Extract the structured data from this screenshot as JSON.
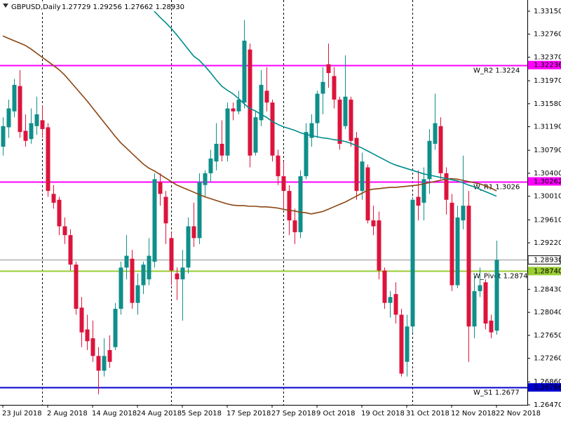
{
  "chart_data": {
    "type": "candlestick",
    "title": "GBPUSD,Daily",
    "ohlc_text": "1.27729 1.29256 1.27662 1.28930",
    "up_color": "#0f8f8a",
    "down_color": "#dc143c",
    "categories": [
      "23 Jul 2018",
      null,
      null,
      null,
      null,
      null,
      null,
      null,
      "2 Aug 2018",
      null,
      null,
      null,
      null,
      null,
      null,
      null,
      "14 Aug 2018",
      null,
      null,
      null,
      null,
      null,
      null,
      null,
      "24 Aug 2018",
      null,
      null,
      null,
      null,
      null,
      null,
      null,
      "5 Sep 2018",
      null,
      null,
      null,
      null,
      null,
      null,
      null,
      "17 Sep 2018",
      null,
      null,
      null,
      null,
      null,
      null,
      null,
      "27 Sep 2018",
      null,
      null,
      null,
      null,
      null,
      null,
      null,
      "9 Oct 2018",
      null,
      null,
      null,
      null,
      null,
      null,
      null,
      "19 Oct 2018",
      null,
      null,
      null,
      null,
      null,
      null,
      null,
      "31 Oct 2018",
      null,
      null,
      null,
      null,
      null,
      null,
      null,
      "12 Nov 2018",
      null,
      null,
      null,
      null,
      null,
      null,
      null,
      "22 Nov 2018"
    ],
    "open": [
      1.3085,
      1.3118,
      1.3145,
      1.3188,
      1.3112,
      1.3098,
      1.312,
      1.313,
      1.3118,
      1.3005,
      1.2995,
      1.295,
      1.2935,
      1.2885,
      1.2812,
      1.2775,
      1.276,
      1.273,
      1.2705,
      1.274,
      1.2745,
      1.281,
      1.288,
      1.2895,
      1.282,
      1.285,
      1.286,
      1.289,
      1.3025,
      1.3,
      1.293,
      1.287,
      1.286,
      1.288,
      1.295,
      1.293,
      1.302,
      1.304,
      1.306,
      1.309,
      1.307,
      1.315,
      1.3145,
      1.316,
      1.325,
      1.3075,
      1.313,
      1.318,
      1.316,
      1.307,
      1.3035,
      1.301,
      1.296,
      1.294,
      1.3035,
      1.31,
      1.3125,
      1.3175,
      1.3225,
      1.3205,
      1.3165,
      1.312,
      1.3165,
      1.31,
      1.301,
      1.305,
      1.296,
      1.296,
      1.2875,
      1.282,
      1.2835,
      1.28,
      1.272,
      1.278,
      1.3,
      1.299,
      1.303,
      1.309,
      1.312,
      1.304,
      1.299,
      1.285,
      1.296,
      1.2985,
      1.278,
      1.284,
      1.2855,
      1.279,
      1.27729
    ],
    "high": [
      1.3135,
      1.3165,
      1.32,
      1.3215,
      1.314,
      1.315,
      1.317,
      1.3155,
      1.3125,
      1.302,
      1.3,
      1.2965,
      1.2945,
      1.289,
      1.283,
      1.28,
      1.279,
      1.2745,
      1.276,
      1.2765,
      1.282,
      1.289,
      1.2935,
      1.291,
      1.287,
      1.289,
      1.293,
      1.304,
      1.304,
      1.301,
      1.294,
      1.288,
      1.291,
      1.2965,
      1.299,
      1.304,
      1.3045,
      1.308,
      1.3125,
      1.313,
      1.316,
      1.316,
      1.318,
      1.33,
      1.326,
      1.3145,
      1.3215,
      1.322,
      1.3165,
      1.308,
      1.306,
      1.302,
      1.298,
      1.3045,
      1.3125,
      1.314,
      1.318,
      1.322,
      1.326,
      1.322,
      1.317,
      1.324,
      1.317,
      1.311,
      1.3075,
      1.3055,
      1.2985,
      1.2975,
      1.288,
      1.284,
      1.2855,
      1.281,
      1.28,
      1.3,
      1.3045,
      1.305,
      1.3115,
      1.3175,
      1.3135,
      1.305,
      1.3005,
      1.2985,
      1.307,
      1.301,
      1.287,
      1.288,
      1.286,
      1.28,
      1.29256
    ],
    "low": [
      1.307,
      1.31,
      1.3135,
      1.31,
      1.3085,
      1.309,
      1.3105,
      1.31,
      1.3,
      1.298,
      1.2935,
      1.292,
      1.2875,
      1.28,
      1.2745,
      1.274,
      1.272,
      1.2665,
      1.2695,
      1.271,
      1.274,
      1.28,
      1.286,
      1.281,
      1.28,
      1.2835,
      1.285,
      1.288,
      1.2985,
      1.292,
      1.285,
      1.2825,
      1.279,
      1.287,
      1.2915,
      1.292,
      1.3,
      1.3025,
      1.3045,
      1.306,
      1.306,
      1.313,
      1.314,
      1.315,
      1.305,
      1.307,
      1.312,
      1.3145,
      1.306,
      1.302,
      1.298,
      1.2935,
      1.292,
      1.293,
      1.303,
      1.3085,
      1.31,
      1.314,
      1.3185,
      1.315,
      1.308,
      1.3115,
      1.3085,
      1.2995,
      1.2995,
      1.2955,
      1.2935,
      1.286,
      1.281,
      1.2795,
      1.2785,
      1.2695,
      1.2695,
      1.277,
      1.296,
      1.296,
      1.3005,
      1.308,
      1.303,
      1.297,
      1.284,
      1.2845,
      1.2945,
      1.272,
      1.276,
      1.283,
      1.2775,
      1.276,
      1.27662
    ],
    "close": [
      1.312,
      1.315,
      1.319,
      1.311,
      1.3095,
      1.3125,
      1.314,
      1.3115,
      1.301,
      1.299,
      1.295,
      1.2935,
      1.2885,
      1.281,
      1.277,
      1.2755,
      1.273,
      1.2705,
      1.273,
      1.272,
      1.281,
      1.288,
      1.29,
      1.282,
      1.285,
      1.2885,
      1.29,
      1.303,
      1.3005,
      1.2955,
      1.2875,
      1.286,
      1.288,
      1.295,
      1.293,
      1.3025,
      1.304,
      1.3065,
      1.309,
      1.307,
      1.315,
      1.3145,
      1.3165,
      1.3265,
      1.307,
      1.3135,
      1.319,
      1.316,
      1.307,
      1.3035,
      1.301,
      1.296,
      1.294,
      1.3035,
      1.311,
      1.3125,
      1.3175,
      1.3195,
      1.321,
      1.3165,
      1.309,
      1.317,
      1.3095,
      1.301,
      1.306,
      1.296,
      1.295,
      1.2875,
      1.282,
      1.283,
      1.28,
      1.27,
      1.278,
      1.2995,
      1.2985,
      1.303,
      1.3095,
      1.3125,
      1.304,
      1.2995,
      1.285,
      1.2965,
      1.2985,
      1.278,
      1.284,
      1.285,
      1.2785,
      1.277,
      1.2893
    ],
    "lines": [
      {
        "color": "#8b4513",
        "values": [
          1.3273,
          1.3269,
          1.3265,
          1.3261,
          1.3257,
          1.3251,
          1.3244,
          1.3237,
          1.323,
          1.3223,
          1.3216,
          1.3207,
          1.3196,
          1.3185,
          1.3174,
          1.3163,
          1.3151,
          1.3139,
          1.3127,
          1.3115,
          1.3103,
          1.3092,
          1.3083,
          1.3074,
          1.3065,
          1.3056,
          1.3049,
          1.3044,
          1.3038,
          1.3032,
          1.3026,
          1.302,
          1.3016,
          1.3012,
          1.3008,
          1.3004,
          1.3,
          1.2997,
          1.2994,
          1.2991,
          1.2988,
          1.2986,
          1.2985,
          1.2985,
          1.2984,
          1.2984,
          1.2983,
          1.2983,
          1.2982,
          1.2981,
          1.2979,
          1.2977,
          1.2976,
          1.2974,
          1.2973,
          1.2971,
          1.2973,
          1.2975,
          1.2979,
          1.2983,
          1.2987,
          1.2991,
          1.2996,
          1.3001,
          1.3006,
          1.3011,
          1.3013,
          1.3014,
          1.3015,
          1.3016,
          1.3016,
          1.3017,
          1.3018,
          1.3019,
          1.302,
          1.3022,
          1.3024,
          1.3026,
          1.3028,
          1.303,
          1.3031,
          1.303,
          1.3028,
          1.3026,
          1.3024,
          1.3022,
          1.3019,
          1.3015,
          1.301
        ]
      },
      {
        "color": "#008b8b",
        "values": [
          null,
          null,
          null,
          null,
          null,
          null,
          null,
          null,
          null,
          null,
          null,
          null,
          null,
          null,
          null,
          null,
          null,
          null,
          null,
          null,
          null,
          null,
          null,
          null,
          null,
          null,
          1.3325,
          1.3315,
          1.3305,
          1.3296,
          1.3286,
          1.3275,
          1.3263,
          1.3251,
          1.3239,
          1.3232,
          1.3222,
          1.3211,
          1.3199,
          1.3188,
          1.3181,
          1.3175,
          1.3167,
          1.3158,
          1.315,
          1.3146,
          1.314,
          1.3135,
          1.3128,
          1.3123,
          1.3119,
          1.3116,
          1.3113,
          1.3109,
          1.3106,
          1.3104,
          1.3102,
          1.31,
          1.3099,
          1.3097,
          1.3096,
          1.3094,
          1.3091,
          1.3087,
          1.3083,
          1.3078,
          1.3073,
          1.3068,
          1.3063,
          1.3058,
          1.3054,
          1.3051,
          1.3048,
          1.3045,
          1.3042,
          1.3039,
          1.3037,
          1.3035,
          1.3033,
          1.3031,
          1.3029,
          1.3027,
          1.3024,
          1.302,
          1.3017,
          1.3013,
          1.3009,
          1.3005,
          1.3001
        ]
      }
    ],
    "levels": [
      {
        "text": "W_R2 1.3224",
        "price": {
          "value": 1.32236,
          "label": "1.32236"
        },
        "color": "#ff00ff"
      },
      {
        "text": "W_R1 1.3026",
        "price": {
          "value": 1.30262,
          "label": "1.30262"
        },
        "color": "#ff00ff"
      },
      {
        "text": "W_Pivot 1.2874",
        "price": {
          "value": 1.2874,
          "label": "1.28740"
        },
        "color": "#9acd32"
      },
      {
        "text": "W_S1 1.2677",
        "price": {
          "value": 1.26766,
          "label": "1.26766"
        },
        "color": "#0000cd"
      }
    ],
    "last_price": {
      "value": 1.2893,
      "label": "1.28930"
    },
    "ylim": [
      1.2647,
      1.3334
    ],
    "yticks": [
      {
        "value": 1.3315,
        "label": "1.33150"
      },
      {
        "value": 1.3276,
        "label": "1.32760"
      },
      {
        "value": 1.3237,
        "label": "1.32370"
      },
      {
        "value": 1.3197,
        "label": "1.31970"
      },
      {
        "value": 1.3158,
        "label": "1.31580"
      },
      {
        "value": 1.3119,
        "label": "1.31190"
      },
      {
        "value": 1.3079,
        "label": "1.30790"
      },
      {
        "value": 1.304,
        "label": "1.30400"
      },
      {
        "value": 1.3001,
        "label": "1.30010"
      },
      {
        "value": 1.2961,
        "label": "1.29610"
      },
      {
        "value": 1.2922,
        "label": "1.29220"
      },
      {
        "value": 1.2843,
        "label": "1.28430"
      },
      {
        "value": 1.2804,
        "label": "1.28040"
      },
      {
        "value": 1.2765,
        "label": "1.27650"
      },
      {
        "value": 1.2726,
        "label": "1.27260"
      },
      {
        "value": 1.2686,
        "label": "1.26860"
      },
      {
        "value": 1.2647,
        "label": "1.26470"
      }
    ]
  }
}
